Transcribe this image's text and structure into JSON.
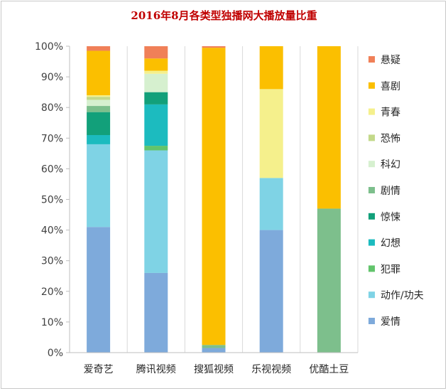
{
  "chart_data": {
    "type": "bar",
    "stacked": true,
    "normalized": true,
    "title": "2016年8月各类型独播网大播放量比重",
    "xlabel": "",
    "ylabel": "",
    "ylim": [
      0,
      100
    ],
    "y_ticks": [
      "0%",
      "10%",
      "20%",
      "30%",
      "40%",
      "50%",
      "60%",
      "70%",
      "80%",
      "90%",
      "100%"
    ],
    "grid": false,
    "legend_position": "right",
    "categories": [
      "爱奇艺",
      "腾讯视频",
      "搜狐视频",
      "乐视视频",
      "优酷土豆"
    ],
    "series": [
      {
        "name": "爱情",
        "color": "#7eaadb",
        "values": [
          41,
          26,
          1.5,
          40,
          0
        ]
      },
      {
        "name": "动作/功夫",
        "color": "#7fd3e5",
        "values": [
          27,
          40,
          0,
          17,
          0
        ]
      },
      {
        "name": "犯罪",
        "color": "#62c46c",
        "values": [
          0,
          1.5,
          0,
          0,
          0
        ]
      },
      {
        "name": "幻想",
        "color": "#1cbbbf",
        "values": [
          3,
          13.5,
          0,
          0,
          0
        ]
      },
      {
        "name": "惊悚",
        "color": "#12a07a",
        "values": [
          7.5,
          4,
          0,
          0,
          0
        ]
      },
      {
        "name": "剧情",
        "color": "#7dbf8c",
        "values": [
          2,
          0,
          1,
          0,
          47
        ]
      },
      {
        "name": "科幻",
        "color": "#d6f0cf",
        "values": [
          2,
          6,
          0,
          0,
          0
        ]
      },
      {
        "name": "恐怖",
        "color": "#c3d98a",
        "values": [
          1,
          0,
          0,
          0,
          0
        ]
      },
      {
        "name": "青春",
        "color": "#f5f08c",
        "values": [
          0.5,
          1,
          0,
          29,
          0
        ]
      },
      {
        "name": "喜剧",
        "color": "#fbbf00",
        "values": [
          14.5,
          4,
          97,
          14,
          53
        ]
      },
      {
        "name": "悬疑",
        "color": "#f08058",
        "values": [
          1.5,
          4,
          0.5,
          0,
          0
        ]
      }
    ]
  }
}
